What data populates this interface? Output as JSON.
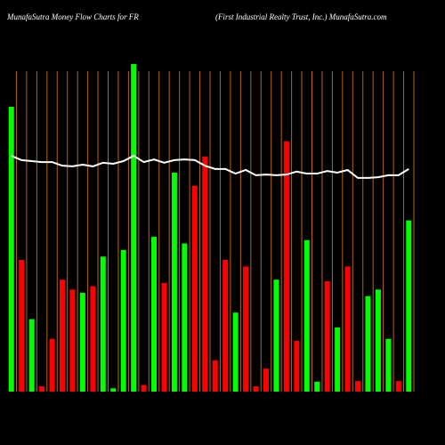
{
  "chart_data": {
    "type": "bar",
    "title": "MunafaSutra  Money Flow  Charts for FR",
    "subtitle": "(First Industrial Realty Trust,  Inc.) MunafaSutra.com",
    "categories": [
      null,
      null,
      null,
      null,
      null,
      null,
      null,
      null,
      null,
      null,
      null,
      null,
      null,
      null,
      null,
      null,
      null,
      null,
      null,
      null,
      null,
      null,
      null,
      null,
      null,
      null,
      null,
      null,
      null,
      null,
      null,
      null,
      null,
      null,
      null,
      null,
      null,
      null,
      null,
      null
    ],
    "values": [
      86.5,
      40,
      22,
      1.6,
      16,
      34,
      31,
      30,
      32,
      41,
      1,
      43,
      99.5,
      2,
      47,
      33,
      66.5,
      45,
      62.5,
      71.4,
      9.5,
      40,
      24,
      38,
      1.6,
      7,
      34,
      76,
      15.4,
      46,
      3,
      33.5,
      19.5,
      38,
      3.2,
      29,
      31,
      16,
      3.2,
      52
    ],
    "colors": [
      "#00ff00",
      "#ff0000",
      "#00ff00",
      "#ff0000",
      "#ff0000",
      "#ff0000",
      "#ff0000",
      "#00ff00",
      "#ff0000",
      "#00ff00",
      "#00ff00",
      "#00ff00",
      "#00ff00",
      "#ff0000",
      "#00ff00",
      "#ff0000",
      "#00ff00",
      "#00ff00",
      "#ff0000",
      "#ff0000",
      "#ff0000",
      "#ff0000",
      "#00ff00",
      "#ff0000",
      "#ff0000",
      "#ff0000",
      "#00ff00",
      "#ff0000",
      "#ff0000",
      "#00ff00",
      "#00ff00",
      "#ff0000",
      "#00ff00",
      "#ff0000",
      "#ff0000",
      "#00ff00",
      "#00ff00",
      "#00ff00",
      "#ff0000",
      "#00ff00"
    ],
    "line": {
      "color": "#ffffff",
      "values": [
        71.6,
        70.3,
        70,
        69.7,
        69.7,
        68.6,
        68.4,
        68.9,
        68.4,
        69.5,
        69.2,
        70,
        71.6,
        69.7,
        70.5,
        69.5,
        70.3,
        70.5,
        70.3,
        68.6,
        67.6,
        67.6,
        66.2,
        67.3,
        65.7,
        65.9,
        65.7,
        65.9,
        66.8,
        66.2,
        66.2,
        67,
        66.5,
        67.3,
        64.9,
        64.9,
        65.1,
        65.7,
        65.7,
        67.6
      ]
    },
    "ylim": [
      0,
      100
    ],
    "grid": true,
    "grid_color": "#b8650f"
  }
}
